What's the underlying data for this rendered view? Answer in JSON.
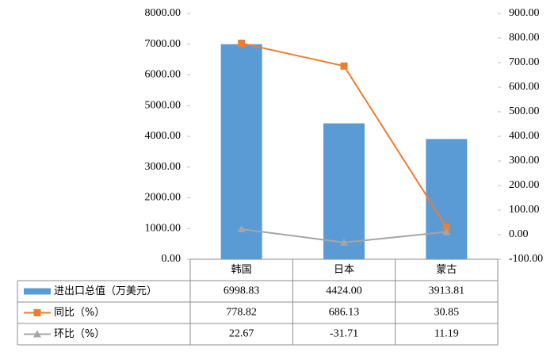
{
  "chart_data": {
    "type": "bar-line",
    "categories": [
      "韩国",
      "日本",
      "蒙古"
    ],
    "series": [
      {
        "name": "进出口总值（万美元）",
        "type": "bar",
        "color": "#5b9bd5",
        "values": [
          6998.83,
          4424.0,
          3913.81
        ],
        "value_labels": [
          "6998.83",
          "4424.00",
          "3913.81"
        ]
      },
      {
        "name": "同比（%）",
        "type": "line",
        "marker": "square",
        "axis": "y2",
        "color": "#ed7d31",
        "values": [
          778.82,
          686.13,
          30.85
        ],
        "value_labels": [
          "778.82",
          "686.13",
          "30.85"
        ]
      },
      {
        "name": "环比（%）",
        "type": "line",
        "marker": "triangle",
        "axis": "y2",
        "color": "#a5a5a5",
        "values": [
          22.67,
          -31.71,
          11.19
        ],
        "value_labels": [
          "22.67",
          "-31.71",
          "11.19"
        ]
      }
    ],
    "ylim": [
      0,
      8000
    ],
    "yticks": [
      {
        "value": 0,
        "label": "0.00"
      },
      {
        "value": 1000,
        "label": "1000.00"
      },
      {
        "value": 2000,
        "label": "2000.00"
      },
      {
        "value": 3000,
        "label": "3000.00"
      },
      {
        "value": 4000,
        "label": "4000.00"
      },
      {
        "value": 5000,
        "label": "5000.00"
      },
      {
        "value": 6000,
        "label": "6000.00"
      },
      {
        "value": 7000,
        "label": "7000.00"
      },
      {
        "value": 8000,
        "label": "8000.00"
      }
    ],
    "y2lim": [
      -100,
      900
    ],
    "y2ticks": [
      {
        "value": -100,
        "label": "-100.00"
      },
      {
        "value": 0,
        "label": "0.00"
      },
      {
        "value": 100,
        "label": "100.00"
      },
      {
        "value": 200,
        "label": "200.00"
      },
      {
        "value": 300,
        "label": "300.00"
      },
      {
        "value": 400,
        "label": "400.00"
      },
      {
        "value": 500,
        "label": "500.00"
      },
      {
        "value": 600,
        "label": "600.00"
      },
      {
        "value": 700,
        "label": "700.00"
      },
      {
        "value": 800,
        "label": "800.00"
      },
      {
        "value": 900,
        "label": "900.00"
      }
    ],
    "grid": false
  }
}
